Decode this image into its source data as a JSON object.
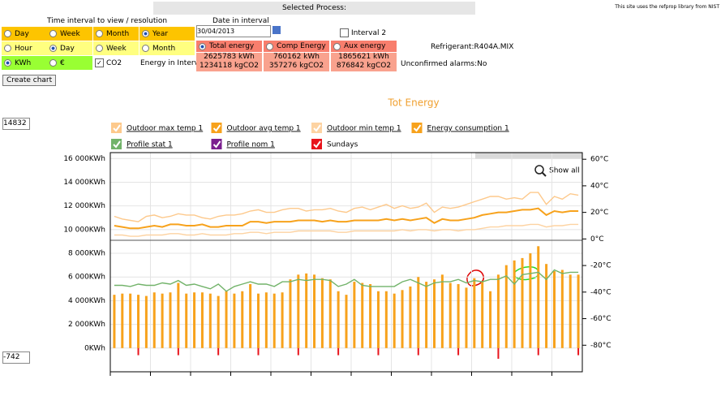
{
  "header": {
    "selected_process": "Selected Process:",
    "nist_note": "This site uses the refprop library from NIST"
  },
  "controls": {
    "interval_title": "Time interval to view / resolution",
    "interval": [
      "Day",
      "Week",
      "Month",
      "Year"
    ],
    "resolution": [
      "Hour",
      "Day",
      "Week",
      "Month"
    ],
    "units": [
      "KWh",
      "€"
    ],
    "co2": "CO2",
    "create_chart": "Create chart",
    "date_label": "Date in interval",
    "date_value": "30/04/2013",
    "interval2": "Interval 2",
    "energy_in_interval": "Energy in Interval",
    "refrigerant": "Refrigerant:R404A.MIX",
    "alarms": "Unconfirmed alarms:No",
    "ymax_input": "14832",
    "ymin_input": "-742",
    "show_all": "Show all"
  },
  "energy": [
    {
      "name": "Total energy",
      "kwh": "2625783 kWh",
      "co2": "1234118 kgCO2"
    },
    {
      "name": "Comp Energy",
      "kwh": "760162 kWh",
      "co2": "357276 kgCO2"
    },
    {
      "name": "Aux energy",
      "kwh": "1865621 kWh",
      "co2": "876842 kgCO2"
    }
  ],
  "chart_data": {
    "type": "bar",
    "title": "Tot Energy",
    "ylim": [
      -2000,
      16500
    ],
    "yticks": [
      {
        "value": 0,
        "label": "0KWh"
      },
      {
        "value": 2000,
        "label": "2 000KWh"
      },
      {
        "value": 4000,
        "label": "4 000KWh"
      },
      {
        "value": 6000,
        "label": "6 000KWh"
      },
      {
        "value": 8000,
        "label": "8 000KWh"
      },
      {
        "value": 10000,
        "label": "10 000KWh"
      },
      {
        "value": 12000,
        "label": "12 000KWh"
      },
      {
        "value": 14000,
        "label": "14 000KWh"
      },
      {
        "value": 16000,
        "label": "16 000KWh"
      }
    ],
    "y2lim": [
      -100,
      65
    ],
    "y2ticks": [
      {
        "value": -80,
        "label": "-80°C"
      },
      {
        "value": -60,
        "label": "-60°C"
      },
      {
        "value": -40,
        "label": "-40°C"
      },
      {
        "value": -20,
        "label": "-20°C"
      },
      {
        "value": 0,
        "label": "0°C"
      },
      {
        "value": 20,
        "label": "20°C"
      },
      {
        "value": 40,
        "label": "40°C"
      },
      {
        "value": 60,
        "label": "60°C"
      }
    ],
    "grid": true,
    "series": [
      {
        "name": "Outdoor max temp 1",
        "color": "#fdc98c",
        "axis": "y2",
        "kind": "line",
        "values": [
          17,
          15,
          14,
          13,
          17,
          18,
          16,
          17,
          19,
          18,
          18,
          16,
          15,
          17,
          18,
          18,
          19,
          21,
          22,
          20,
          20,
          22,
          23,
          23,
          21,
          22,
          22,
          23,
          21,
          20,
          23,
          24,
          22,
          24,
          26,
          23,
          25,
          23,
          24,
          27,
          20,
          24,
          23,
          24,
          26,
          28,
          30,
          32,
          32,
          30,
          31,
          30,
          35,
          35,
          26,
          32,
          30,
          34,
          33
        ]
      },
      {
        "name": "Outdoor avg temp 1",
        "color": "#f7a21c",
        "axis": "y2",
        "kind": "line",
        "values": [
          10,
          9,
          8,
          8,
          9,
          10,
          9,
          11,
          11,
          10,
          10,
          11,
          9,
          9,
          10,
          10,
          10,
          13,
          13,
          12,
          13,
          13,
          13,
          14,
          14,
          14,
          13,
          14,
          13,
          13,
          14,
          14,
          14,
          14,
          15,
          14,
          15,
          14,
          15,
          16,
          12,
          15,
          14,
          14,
          15,
          16,
          18,
          19,
          20,
          20,
          21,
          22,
          22,
          23,
          18,
          21,
          20,
          21,
          21
        ]
      },
      {
        "name": "Outdoor min temp 1",
        "color": "#fdd3a2",
        "axis": "y2",
        "kind": "line",
        "values": [
          3,
          3,
          2,
          2,
          3,
          3,
          3,
          4,
          4,
          3,
          3,
          4,
          3,
          3,
          3,
          4,
          4,
          5,
          5,
          4,
          5,
          5,
          5,
          6,
          6,
          6,
          6,
          6,
          5,
          5,
          6,
          6,
          6,
          6,
          6,
          6,
          7,
          6,
          7,
          7,
          6,
          7,
          7,
          6,
          7,
          7,
          8,
          9,
          9,
          10,
          10,
          10,
          11,
          11,
          9,
          10,
          10,
          11,
          11
        ]
      },
      {
        "name": "Energy consumption 1",
        "color": "#f7a21c",
        "kind": "bar",
        "values": [
          4500,
          4600,
          4600,
          4500,
          4400,
          4700,
          4600,
          4700,
          5500,
          4600,
          4700,
          4700,
          4600,
          4400,
          4800,
          4600,
          4800,
          5400,
          4600,
          4700,
          4600,
          4700,
          5800,
          6200,
          6300,
          6200,
          5900,
          5800,
          4800,
          4500,
          5600,
          5500,
          5400,
          4800,
          4800,
          4600,
          4900,
          5200,
          6000,
          5600,
          5800,
          6200,
          5500,
          5400,
          5100,
          5900,
          5600,
          4800,
          6200,
          7000,
          7400,
          7600,
          8000,
          8600,
          7100,
          6500,
          6600,
          6200,
          6200
        ]
      },
      {
        "name": "Profile stat 1",
        "color": "#72b36a",
        "kind": "line",
        "values": [
          5300,
          5300,
          5200,
          5400,
          5300,
          5300,
          5500,
          5400,
          5700,
          5300,
          5400,
          5200,
          5000,
          5400,
          4800,
          5200,
          5400,
          5600,
          5400,
          5400,
          5200,
          5600,
          5600,
          5800,
          5700,
          5800,
          5800,
          5700,
          5200,
          5400,
          5800,
          5300,
          5200,
          5200,
          5200,
          5200,
          5600,
          5800,
          5500,
          5200,
          5500,
          5600,
          5600,
          5800,
          5500,
          5700,
          5600,
          5800,
          5800,
          6100,
          5400,
          6200,
          6300,
          6400,
          5800,
          6600,
          6300,
          6400,
          6400
        ]
      },
      {
        "name": "Profile nom 1",
        "color": "#7b1f8f",
        "kind": "line",
        "values": [
          null,
          null,
          null,
          null,
          null,
          null,
          null,
          null,
          null,
          null,
          null,
          null,
          null,
          null,
          null,
          null,
          null,
          null,
          null,
          null,
          null,
          null,
          null,
          null,
          null,
          null,
          null,
          null,
          null,
          null,
          null,
          null,
          null,
          null,
          null,
          null,
          null,
          null,
          null,
          null,
          null,
          null,
          null,
          null,
          null,
          null,
          null,
          null,
          null,
          null,
          null,
          null,
          null,
          null,
          null,
          null,
          null,
          null,
          null
        ]
      },
      {
        "name": "Sundays",
        "color": "#e8141c",
        "kind": "tick",
        "values": [
          null,
          null,
          null,
          -600,
          null,
          null,
          null,
          null,
          -600,
          null,
          null,
          null,
          null,
          -600,
          null,
          null,
          null,
          null,
          -600,
          null,
          null,
          null,
          null,
          -600,
          null,
          null,
          null,
          null,
          -600,
          null,
          null,
          null,
          null,
          -600,
          null,
          null,
          null,
          null,
          -600,
          null,
          null,
          null,
          null,
          -600,
          null,
          null,
          null,
          null,
          -900,
          null,
          null,
          null,
          null,
          -600,
          null,
          null,
          null,
          null,
          -600
        ]
      }
    ]
  }
}
